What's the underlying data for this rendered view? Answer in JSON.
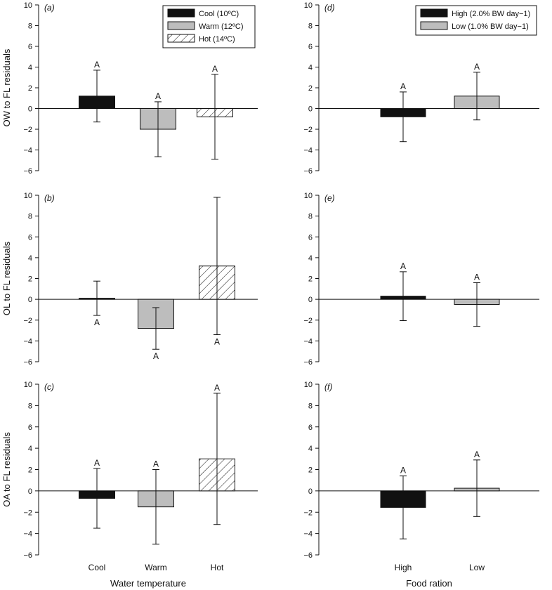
{
  "chart_data": [
    {
      "panel": "(a)",
      "type": "bar",
      "ylabel": "OW to FL residuals",
      "xlabel": "",
      "ylim": [
        -6,
        10
      ],
      "yticks": [
        -6,
        -4,
        -2,
        0,
        2,
        4,
        6,
        8,
        10
      ],
      "categories": [
        "Cool",
        "Warm",
        "Hot"
      ],
      "show_categories": false,
      "values": [
        1.2,
        -2.0,
        -0.8
      ],
      "errors": [
        2.5,
        2.65,
        4.1
      ],
      "styles": [
        "black",
        "gray",
        "hatch"
      ],
      "letters": [
        "A",
        "A",
        "A"
      ],
      "letter_pos": [
        "above",
        "above",
        "above"
      ],
      "legend": [
        {
          "label": "Cool (10ºC)",
          "style": "black"
        },
        {
          "label": "Warm (12ºC)",
          "style": "gray"
        },
        {
          "label": "Hot (14ºC)",
          "style": "hatch"
        }
      ]
    },
    {
      "panel": "(b)",
      "type": "bar",
      "ylabel": "OL to FL residuals",
      "xlabel": "",
      "ylim": [
        -6,
        10
      ],
      "yticks": [
        -6,
        -4,
        -2,
        0,
        2,
        4,
        6,
        8,
        10
      ],
      "categories": [
        "Cool",
        "Warm",
        "Hot"
      ],
      "show_categories": false,
      "values": [
        0.1,
        -2.8,
        3.2
      ],
      "errors": [
        1.65,
        2.0,
        6.6
      ],
      "styles": [
        "black",
        "gray",
        "hatch"
      ],
      "letters": [
        "A",
        "A",
        "A"
      ],
      "letter_pos": [
        "below",
        "below",
        "below"
      ]
    },
    {
      "panel": "(c)",
      "type": "bar",
      "ylabel": "OA to FL residuals",
      "xlabel": "Water temperature",
      "ylim": [
        -6,
        10
      ],
      "yticks": [
        -6,
        -4,
        -2,
        0,
        2,
        4,
        6,
        8,
        10
      ],
      "categories": [
        "Cool",
        "Warm",
        "Hot"
      ],
      "show_categories": true,
      "values": [
        -0.7,
        -1.5,
        3.0
      ],
      "errors": [
        2.8,
        3.5,
        6.15
      ],
      "styles": [
        "black",
        "gray",
        "hatch"
      ],
      "letters": [
        "A",
        "A",
        "A"
      ],
      "letter_pos": [
        "above",
        "above",
        "above"
      ]
    },
    {
      "panel": "(d)",
      "type": "bar",
      "ylabel": "",
      "xlabel": "",
      "ylim": [
        -6,
        10
      ],
      "yticks": [
        -6,
        -4,
        -2,
        0,
        2,
        4,
        6,
        8,
        10
      ],
      "categories": [
        "High",
        "Low"
      ],
      "show_categories": false,
      "values": [
        -0.8,
        1.2
      ],
      "errors": [
        2.4,
        2.3
      ],
      "styles": [
        "black",
        "gray"
      ],
      "letters": [
        "A",
        "A"
      ],
      "letter_pos": [
        "above",
        "above"
      ],
      "legend": [
        {
          "label": "High (2.0% BW day−1)",
          "style": "black"
        },
        {
          "label": "Low (1.0% BW day−1)",
          "style": "gray"
        }
      ]
    },
    {
      "panel": "(e)",
      "type": "bar",
      "ylabel": "",
      "xlabel": "",
      "ylim": [
        -6,
        10
      ],
      "yticks": [
        -6,
        -4,
        -2,
        0,
        2,
        4,
        6,
        8,
        10
      ],
      "categories": [
        "High",
        "Low"
      ],
      "show_categories": false,
      "values": [
        0.3,
        -0.5
      ],
      "errors": [
        2.35,
        2.1
      ],
      "styles": [
        "black",
        "gray"
      ],
      "letters": [
        "A",
        "A"
      ],
      "letter_pos": [
        "above",
        "above"
      ]
    },
    {
      "panel": "(f)",
      "type": "bar",
      "ylabel": "",
      "xlabel": "Food ration",
      "ylim": [
        -6,
        10
      ],
      "yticks": [
        -6,
        -4,
        -2,
        0,
        2,
        4,
        6,
        8,
        10
      ],
      "categories": [
        "High",
        "Low"
      ],
      "show_categories": true,
      "values": [
        -1.55,
        0.25
      ],
      "errors": [
        2.95,
        2.65
      ],
      "styles": [
        "black",
        "gray"
      ],
      "letters": [
        "A",
        "A"
      ],
      "letter_pos": [
        "above",
        "above"
      ]
    }
  ],
  "colors": {
    "black": "#111111",
    "gray": "#bdbdbd",
    "hatch": "#ffffff",
    "axis": "#111111"
  }
}
